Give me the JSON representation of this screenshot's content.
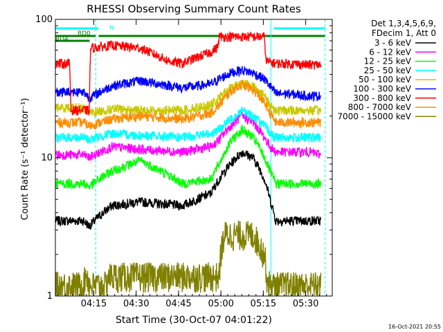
{
  "chart_data": {
    "type": "line",
    "title": "RHESSI Observing Summary Count Rates",
    "xlabel": "Start Time (30-Oct-07 04:01:22)",
    "ylabel": "Count Rate (s⁻¹ detector⁻¹)",
    "x_unit": "minutes since 04:01:22",
    "xlim": [
      0,
      98
    ],
    "ylim": [
      1,
      100
    ],
    "y_scale": "log",
    "x_ticks": [
      {
        "label": "04:15",
        "value": 13.6
      },
      {
        "label": "04:30",
        "value": 28.6
      },
      {
        "label": "04:45",
        "value": 43.6
      },
      {
        "label": "05:00",
        "value": 58.6
      },
      {
        "label": "05:15",
        "value": 73.6
      },
      {
        "label": "05:30",
        "value": 88.6
      }
    ],
    "y_ticks": [
      {
        "label": "1",
        "value": 1
      },
      {
        "label": "10",
        "value": 10
      },
      {
        "label": "100",
        "value": 100
      }
    ],
    "legend_header": [
      "Det 1,3,4,5,6,9,",
      "FDecim 1, Att 0"
    ],
    "legend_position": "right",
    "series": [
      {
        "name": "3 - 6 keV",
        "color": "#000000",
        "x": [
          0,
          10,
          12,
          20,
          30,
          45,
          55,
          58,
          62,
          66,
          70,
          74,
          76,
          78,
          82,
          90,
          94
        ],
        "values": [
          3.5,
          3.5,
          3.2,
          4.5,
          4.8,
          4.5,
          5.5,
          7,
          9,
          11,
          10,
          7,
          5,
          3.5,
          3.5,
          3.5,
          3.5
        ]
      },
      {
        "name": "6 - 12 keV",
        "color": "#ff00ff",
        "x": [
          0,
          10,
          12,
          20,
          30,
          45,
          55,
          58,
          62,
          66,
          70,
          74,
          76,
          78,
          82,
          90,
          94
        ],
        "values": [
          10.5,
          10.5,
          10,
          12,
          11.5,
          11,
          12,
          13.5,
          17,
          20,
          18,
          14,
          12,
          11,
          11,
          11,
          10.5
        ]
      },
      {
        "name": "12 - 25 keV",
        "color": "#00ff00",
        "x": [
          0,
          10,
          12,
          20,
          30,
          45,
          55,
          58,
          62,
          66,
          70,
          74,
          76,
          78,
          82,
          90,
          94
        ],
        "values": [
          6.5,
          6.5,
          6.2,
          8,
          9.5,
          6.5,
          7,
          9,
          13,
          16,
          14,
          10,
          8,
          6.5,
          6.5,
          6.5,
          6.5
        ]
      },
      {
        "name": "25 - 50 keV",
        "color": "#00ffff",
        "x": [
          0,
          10,
          12,
          20,
          30,
          45,
          55,
          58,
          62,
          66,
          70,
          74,
          76,
          78,
          82,
          90,
          94
        ],
        "values": [
          14,
          14,
          13.5,
          15,
          14.5,
          14,
          15,
          16,
          19,
          22,
          20,
          17,
          15,
          14,
          14,
          14,
          14
        ]
      },
      {
        "name": "50 - 100 keV",
        "color": "#c8c800",
        "x": [
          0,
          10,
          12,
          20,
          30,
          45,
          55,
          58,
          62,
          66,
          70,
          74,
          76,
          78,
          82,
          90,
          94
        ],
        "values": [
          23,
          23,
          21,
          22.5,
          22,
          22,
          24,
          27,
          32,
          35,
          33,
          28,
          24,
          22,
          22,
          22,
          22
        ]
      },
      {
        "name": "100 - 300 keV",
        "color": "#0000ff",
        "x": [
          0,
          10,
          12,
          20,
          30,
          45,
          55,
          58,
          62,
          66,
          70,
          74,
          76,
          78,
          82,
          90,
          94
        ],
        "values": [
          30,
          30,
          27,
          33,
          36,
          32,
          34,
          37,
          41,
          43,
          41,
          37,
          33,
          29,
          29,
          28,
          28
        ]
      },
      {
        "name": "300 - 800 keV",
        "color": "#ff0000",
        "x": [
          0,
          5,
          5.5,
          12,
          12.5,
          20,
          30,
          40,
          45,
          55,
          57.5,
          58,
          62,
          66,
          70,
          74,
          74.5,
          76,
          78,
          82,
          90,
          94
        ],
        "values": [
          48,
          48,
          22,
          22,
          62,
          65,
          62,
          50,
          48,
          58,
          63,
          75,
          75,
          75,
          75,
          75,
          50,
          49,
          48,
          48,
          47,
          47
        ]
      },
      {
        "name": "800 - 7000 keV",
        "color": "#ff8c00",
        "x": [
          0,
          10,
          12,
          20,
          30,
          45,
          55,
          58,
          62,
          66,
          70,
          74,
          76,
          78,
          82,
          90,
          94
        ],
        "values": [
          18,
          18,
          17,
          19,
          20,
          19,
          21,
          24,
          30,
          34,
          31,
          25,
          21,
          18,
          18,
          18,
          18
        ]
      },
      {
        "name": "7000 - 15000 keV",
        "color": "#808000",
        "x": [
          0,
          10,
          11,
          12,
          18,
          18.5,
          58,
          58.5,
          59,
          60,
          70,
          74,
          75,
          76,
          78,
          94
        ],
        "values": [
          1.2,
          1.2,
          1.5,
          1.2,
          1.2,
          1.4,
          1.4,
          2.0,
          2.3,
          2.8,
          2.8,
          2.0,
          1.3,
          1.2,
          1.2,
          1.2
        ]
      }
    ],
    "vertical_markers": [
      {
        "color": "#00ffff",
        "style": "solid",
        "x": 0
      },
      {
        "color": "#00ffff",
        "style": "dashed",
        "x": 14.3
      },
      {
        "color": "#00ffff",
        "style": "solid",
        "x": 76.3
      },
      {
        "color": "#00ffff",
        "style": "dashed",
        "x": 95.5
      }
    ],
    "flags": [
      {
        "label": "RD0",
        "color": "#008000",
        "segments": [
          [
            0,
            14.3
          ],
          [
            15.3,
            58
          ],
          [
            73,
            95.5
          ]
        ]
      },
      {
        "label": "RD4",
        "color": "#008000",
        "segments": [
          [
            0,
            12.1
          ]
        ]
      },
      {
        "label": "N",
        "color": "#00ffff",
        "segments": [
          [
            0,
            15.3
          ],
          [
            77.3,
            95.5
          ]
        ]
      }
    ],
    "annotations": [
      "RD0",
      "RD4",
      "N"
    ]
  },
  "footer": {
    "timestamp": "16-Oct-2021 20:55"
  }
}
